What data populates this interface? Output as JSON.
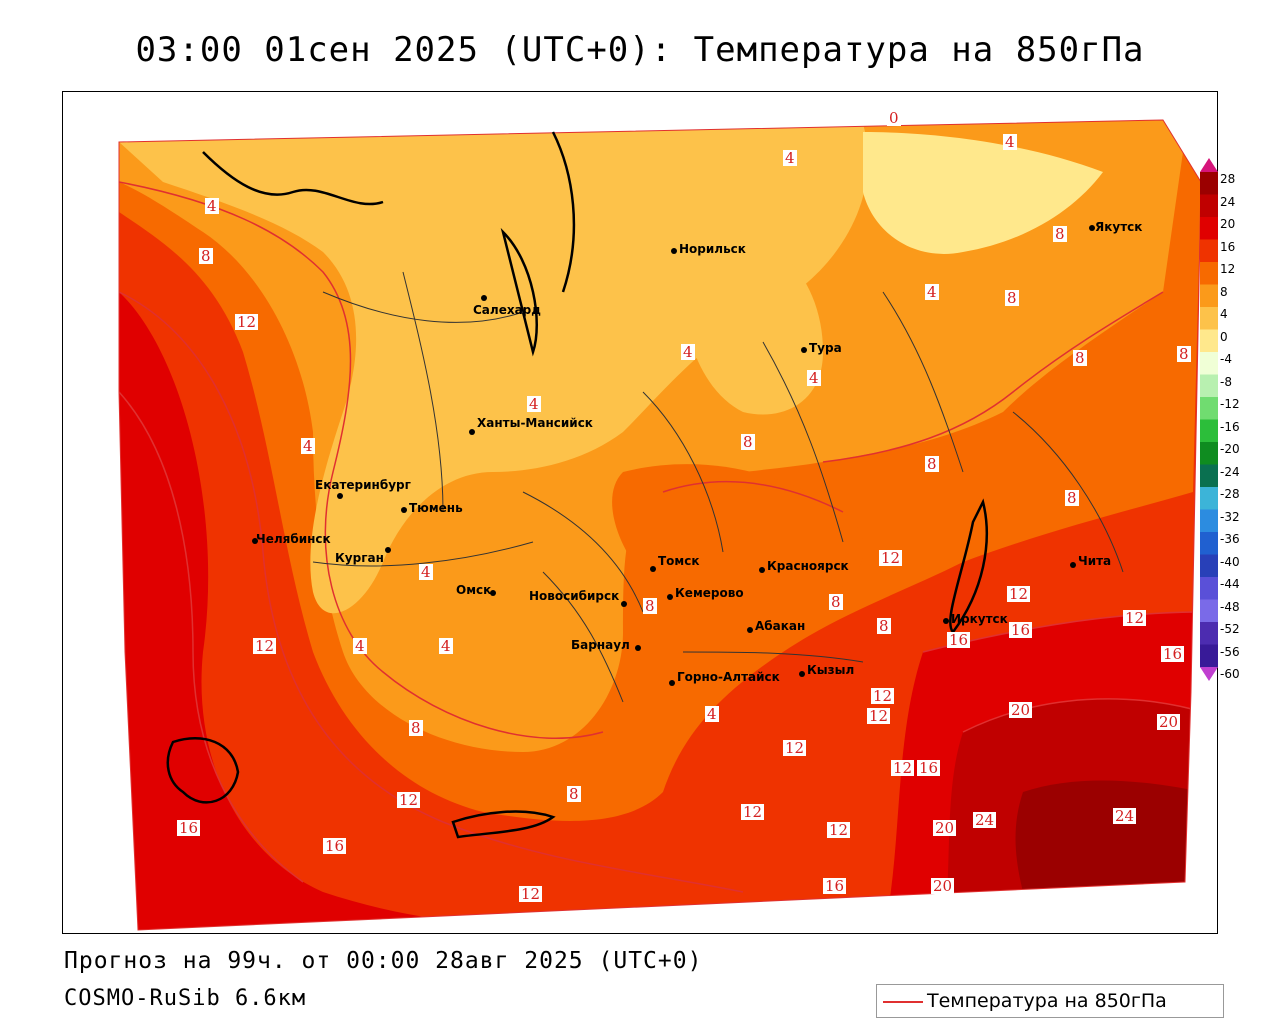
{
  "title": "03:00 01сен 2025 (UTC+0): Температура на 850гПа",
  "forecast_line": "Прогноз на 99ч. от 00:00 28авг 2025 (UTC+0)",
  "model_line": "COSMO-RuSib 6.6км",
  "legend": {
    "label": "Температура на 850гПа",
    "line_color": "#e03030"
  },
  "colorbar": {
    "ticks": [
      "28",
      "24",
      "20",
      "16",
      "12",
      "8",
      "4",
      "0",
      "-4",
      "-8",
      "-12",
      "-16",
      "-20",
      "-24",
      "-28",
      "-32",
      "-36",
      "-40",
      "-44",
      "-48",
      "-52",
      "-56",
      "-60"
    ],
    "colors": [
      "#d6157a",
      "#9b0000",
      "#c00000",
      "#e00000",
      "#ef3300",
      "#f76a00",
      "#fb9a1a",
      "#fdc24a",
      "#ffe88c",
      "#f0ffd6",
      "#b8f0b0",
      "#70dc70",
      "#2cbe3a",
      "#0f8c20",
      "#0a7050",
      "#3cb4d8",
      "#2c8ce0",
      "#2060d0",
      "#2840b8",
      "#5a50d8",
      "#7a6ae8",
      "#4c2cb0",
      "#381a98",
      "#c040d0"
    ]
  },
  "cities": [
    {
      "name": "Якутск"
    },
    {
      "name": "Норильск"
    },
    {
      "name": "Салехард"
    },
    {
      "name": "Тура"
    },
    {
      "name": "Ханты-Мансийск"
    },
    {
      "name": "Екатеринбург"
    },
    {
      "name": "Тюмень"
    },
    {
      "name": "Челябинск"
    },
    {
      "name": "Курган"
    },
    {
      "name": "Омск"
    },
    {
      "name": "Новосибирск"
    },
    {
      "name": "Томск"
    },
    {
      "name": "Кемерово"
    },
    {
      "name": "Красноярск"
    },
    {
      "name": "Барнаул"
    },
    {
      "name": "Абакан"
    },
    {
      "name": "Горно-Алтайск"
    },
    {
      "name": "Кызыл"
    },
    {
      "name": "Иркутск"
    },
    {
      "name": "Чита"
    }
  ],
  "contour_labels": [
    "0",
    "4",
    "4",
    "4",
    "4",
    "4",
    "4",
    "4",
    "4",
    "4",
    "4",
    "4",
    "4",
    "8",
    "8",
    "8",
    "8",
    "8",
    "8",
    "8",
    "8",
    "8",
    "8",
    "8",
    "8",
    "8",
    "12",
    "12",
    "12",
    "12",
    "12",
    "12",
    "12",
    "12",
    "12",
    "12",
    "12",
    "12",
    "12",
    "16",
    "16",
    "16",
    "16",
    "16",
    "16",
    "16",
    "20",
    "20",
    "20",
    "20",
    "24",
    "24"
  ]
}
